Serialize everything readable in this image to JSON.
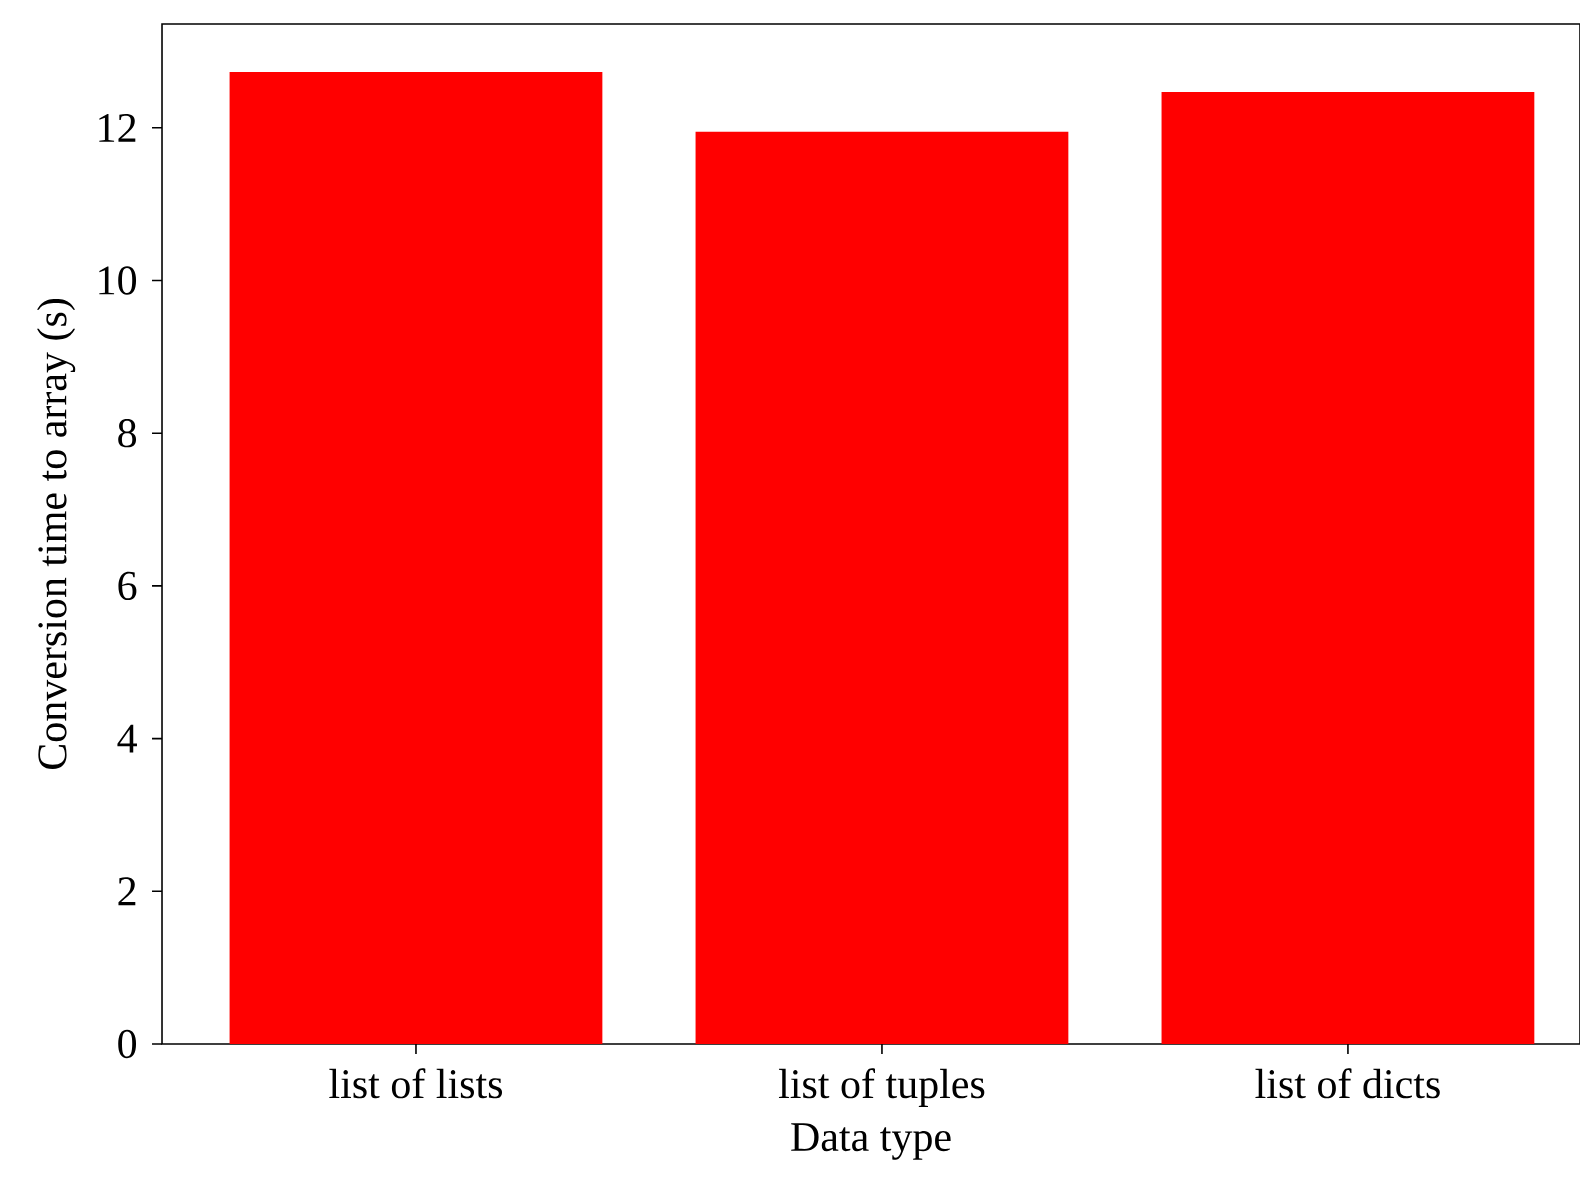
{
  "chart_data": {
    "type": "bar",
    "xlabel": "Data type",
    "ylabel": "Conversion time to array (s)",
    "categories": [
      "list of lists",
      "list of tuples",
      "list of dicts"
    ],
    "values": [
      12.73,
      11.95,
      12.47
    ],
    "color": "#ff0000",
    "ylim": [
      0,
      13.36
    ],
    "yticks": [
      0,
      2,
      4,
      6,
      8,
      10,
      12
    ],
    "grid": false
  }
}
